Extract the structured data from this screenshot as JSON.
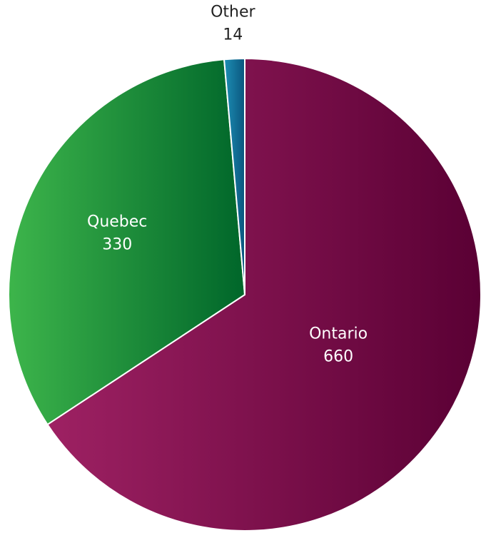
{
  "chart_data": {
    "type": "pie",
    "categories": [
      "Ontario",
      "Quebec",
      "Other"
    ],
    "values": [
      660,
      330,
      14
    ],
    "gradients": [
      [
        "#9e2163",
        "#5a0034"
      ],
      [
        "#3db54b",
        "#00662a"
      ],
      [
        "#1d8fb5",
        "#0a557d"
      ]
    ],
    "start_angle": 0,
    "direction": "clockwise"
  }
}
